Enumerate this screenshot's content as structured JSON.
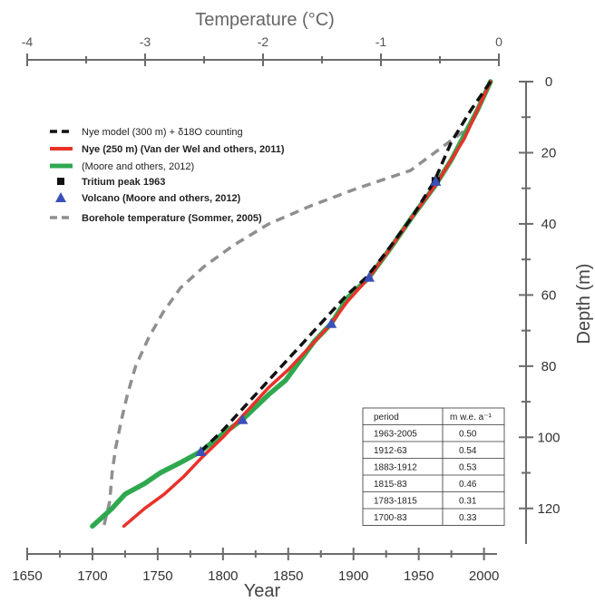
{
  "chart_data": {
    "type": "line",
    "xlabel": "Year",
    "ylabel": "Depth (m)",
    "x2label": "Temperature (°C)",
    "xlim": [
      1650,
      2010
    ],
    "ylim": [
      0,
      130
    ],
    "x2lim": [
      -4,
      0
    ],
    "x_ticks": [
      "1650",
      "1700",
      "1750",
      "1800",
      "1850",
      "1900",
      "1950",
      "2000"
    ],
    "y_ticks": [
      "0",
      "20",
      "40",
      "60",
      "80",
      "100",
      "120"
    ],
    "x2_ticks": [
      "-4",
      "-3",
      "-2",
      "-1",
      "0"
    ],
    "legend_position": "top-left",
    "series": [
      {
        "name": "Nye model (300 m) + δ18O counting",
        "axis": "year",
        "color": "#111111",
        "style": "dashed",
        "points": [
          [
            2005,
            0
          ],
          [
            1990,
            8
          ],
          [
            1975,
            17
          ],
          [
            1962,
            28
          ],
          [
            1945,
            38
          ],
          [
            1925,
            48
          ],
          [
            1910,
            55
          ],
          [
            1895,
            60
          ],
          [
            1880,
            66
          ],
          [
            1860,
            74
          ],
          [
            1845,
            80
          ],
          [
            1830,
            86
          ],
          [
            1815,
            92
          ],
          [
            1800,
            98
          ],
          [
            1783,
            104
          ]
        ]
      },
      {
        "name": "Nye (250 m) (Van der Wel and others, 2011)",
        "axis": "year",
        "color": "#e8322a",
        "style": "solid",
        "points": [
          [
            2005,
            0
          ],
          [
            1995,
            8
          ],
          [
            1985,
            16
          ],
          [
            1975,
            22
          ],
          [
            1963,
            29
          ],
          [
            1945,
            38
          ],
          [
            1928,
            47
          ],
          [
            1912,
            55
          ],
          [
            1895,
            62
          ],
          [
            1883,
            68
          ],
          [
            1868,
            74
          ],
          [
            1850,
            81
          ],
          [
            1835,
            86
          ],
          [
            1815,
            94
          ],
          [
            1800,
            100
          ],
          [
            1783,
            106
          ],
          [
            1770,
            111
          ],
          [
            1755,
            116
          ],
          [
            1740,
            120
          ],
          [
            1724,
            125
          ]
        ]
      },
      {
        "name": "(Moore and others, 2012)",
        "axis": "year",
        "color": "#2fa84f",
        "style": "solid",
        "points": [
          [
            2005,
            0
          ],
          [
            1995,
            8
          ],
          [
            1985,
            15
          ],
          [
            1975,
            22
          ],
          [
            1963,
            29
          ],
          [
            1945,
            38
          ],
          [
            1928,
            47
          ],
          [
            1912,
            55
          ],
          [
            1895,
            61
          ],
          [
            1883,
            68
          ],
          [
            1870,
            73
          ],
          [
            1858,
            79
          ],
          [
            1848,
            84
          ],
          [
            1835,
            88
          ],
          [
            1815,
            95
          ],
          [
            1800,
            99
          ],
          [
            1783,
            104
          ],
          [
            1768,
            107
          ],
          [
            1752,
            110
          ],
          [
            1740,
            113
          ],
          [
            1725,
            116
          ],
          [
            1715,
            120
          ],
          [
            1700,
            125
          ]
        ]
      },
      {
        "name": "Tritium peak 1963",
        "axis": "year",
        "color": "#111111",
        "marker": "square",
        "points": [
          [
            1963,
            28
          ]
        ]
      },
      {
        "name": "Volcano (Moore and others, 2012)",
        "axis": "year",
        "color": "#3a4fb8",
        "marker": "triangle",
        "points": [
          [
            1963,
            28
          ],
          [
            1912,
            55
          ],
          [
            1883,
            68
          ],
          [
            1815,
            95
          ],
          [
            1783,
            104
          ]
        ]
      },
      {
        "name": "Borehole temperature (Sommer, 2005)",
        "axis": "temperature",
        "color": "#8f8f8f",
        "style": "dashed",
        "points": [
          [
            -0.3,
            14
          ],
          [
            -0.75,
            25
          ],
          [
            -1.2,
            30
          ],
          [
            -1.6,
            35
          ],
          [
            -1.95,
            40
          ],
          [
            -2.25,
            46
          ],
          [
            -2.5,
            52
          ],
          [
            -2.7,
            58
          ],
          [
            -2.85,
            65
          ],
          [
            -2.97,
            72
          ],
          [
            -3.08,
            80
          ],
          [
            -3.15,
            88
          ],
          [
            -3.2,
            95
          ],
          [
            -3.25,
            103
          ],
          [
            -3.28,
            110
          ],
          [
            -3.3,
            118
          ],
          [
            -3.35,
            125
          ]
        ]
      }
    ],
    "table": {
      "headers": [
        "period",
        "m w.e. a⁻¹"
      ],
      "rows": [
        [
          "1963-2005",
          "0.50"
        ],
        [
          "1912-63",
          "0.54"
        ],
        [
          "1883-1912",
          "0.53"
        ],
        [
          "1815-83",
          "0.46"
        ],
        [
          "1783-1815",
          "0.31"
        ],
        [
          "1700-83",
          "0.33"
        ]
      ]
    }
  }
}
